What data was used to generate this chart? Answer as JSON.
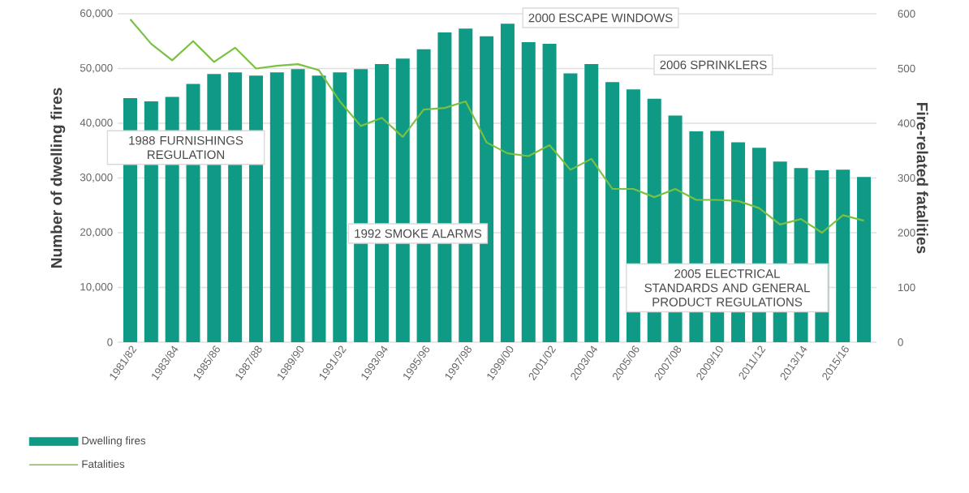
{
  "chart_data": {
    "type": "bar",
    "categories": [
      "1981/82",
      null,
      "1983/84",
      null,
      "1985/86",
      null,
      "1987/88",
      null,
      "1989/90",
      null,
      "1991/92",
      null,
      "1993/94",
      null,
      "1995/96",
      null,
      "1997/98",
      null,
      "1999/00",
      null,
      "2001/02",
      null,
      "2003/04",
      null,
      "2005/06",
      null,
      "2007/08",
      null,
      "2009/10",
      null,
      "2011/12",
      null,
      "2013/14",
      null,
      "2015/16",
      null
    ],
    "series": [
      {
        "name": "Dwelling fires",
        "color": "#0e9a84",
        "values": [
          44600,
          44000,
          44800,
          47200,
          49000,
          49300,
          48700,
          49300,
          49900,
          48700,
          49300,
          49900,
          50800,
          51800,
          53500,
          56600,
          57300,
          55900,
          58200,
          54800,
          54500,
          49100,
          50800,
          47500,
          46200,
          44500,
          41400,
          38500,
          38600,
          36500,
          35500,
          33000,
          31800,
          31400,
          31500,
          30200
        ]
      },
      {
        "name": "Fatalities",
        "type": "line",
        "axis": "y2",
        "color": "#7ac143",
        "values": [
          590,
          545,
          515,
          550,
          512,
          538,
          500,
          505,
          508,
          497,
          440,
          395,
          410,
          375,
          425,
          428,
          440,
          365,
          345,
          340,
          360,
          315,
          335,
          280,
          280,
          265,
          280,
          260,
          260,
          258,
          245,
          215,
          225,
          200,
          232,
          222
        ]
      }
    ],
    "ylabel": "Number of dwelling fires",
    "y2label": "Fire-related fatalities",
    "ylim": [
      0,
      60000
    ],
    "yticks": [
      0,
      {
        "value": 10000,
        "label": "10,000"
      },
      {
        "value": 20000,
        "label": "20,000"
      },
      {
        "value": 30000,
        "label": "30,000"
      },
      {
        "value": 40000,
        "label": "40,000"
      },
      {
        "value": 50000,
        "label": "50,000"
      },
      {
        "value": 60000,
        "label": "60,000"
      }
    ],
    "y2lim": [
      0,
      600
    ],
    "y2ticks": [
      0,
      100,
      200,
      300,
      400,
      500,
      600
    ],
    "grid": "y",
    "legend": "bottom left",
    "annotations": [
      "1988 FURNISHINGS REGULATION",
      "1992 SMOKE ALARMS",
      "2000 ESCAPE WINDOWS",
      "2006 SPRINKLERS",
      "2005 ELECTRICAL STANDARDS AND GENERAL PRODUCT REGULATIONS"
    ]
  }
}
